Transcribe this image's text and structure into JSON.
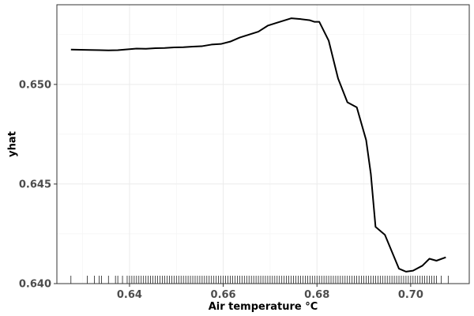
{
  "chart_data": {
    "type": "line",
    "title": "",
    "xlabel": "Air temperature °C",
    "ylabel": "yhat",
    "xlim": [
      0.6245,
      0.7125
    ],
    "ylim": [
      0.64,
      0.654
    ],
    "x_ticks": [
      0.64,
      0.66,
      0.68,
      0.7
    ],
    "x_tick_labels": [
      "0.64",
      "0.66",
      "0.68",
      "0.70"
    ],
    "y_ticks": [
      0.64,
      0.645,
      0.65
    ],
    "y_tick_labels": [
      "0.640",
      "0.645",
      "0.650"
    ],
    "grid": true,
    "legend": "none",
    "series": [
      {
        "x": [
          0.6275,
          0.6315,
          0.6355,
          0.6375,
          0.6415,
          0.6435,
          0.6455,
          0.6475,
          0.6495,
          0.6515,
          0.6535,
          0.6555,
          0.6575,
          0.6595,
          0.6615,
          0.6635,
          0.6655,
          0.6675,
          0.6695,
          0.6715,
          0.6745,
          0.6765,
          0.6785,
          0.6795,
          0.6805,
          0.6825,
          0.6845,
          0.6865,
          0.6885,
          0.6905,
          0.6915,
          0.6925,
          0.6945,
          0.6975,
          0.699,
          0.7005,
          0.7025,
          0.704,
          0.7055,
          0.7075
        ],
        "y": [
          0.65175,
          0.65173,
          0.65171,
          0.65172,
          0.6518,
          0.65179,
          0.65182,
          0.65183,
          0.65186,
          0.65187,
          0.6519,
          0.65192,
          0.652,
          0.65203,
          0.65215,
          0.65235,
          0.6525,
          0.65265,
          0.65295,
          0.6531,
          0.65332,
          0.65328,
          0.65322,
          0.65314,
          0.65314,
          0.6522,
          0.6503,
          0.6491,
          0.64885,
          0.6472,
          0.6455,
          0.64285,
          0.64245,
          0.64075,
          0.6406,
          0.64065,
          0.6409,
          0.64125,
          0.64115,
          0.64132
        ]
      }
    ],
    "rug_x": [
      0.6275,
      0.631,
      0.6325,
      0.6335,
      0.634,
      0.6355,
      0.637,
      0.6375,
      0.6385,
      0.6395,
      0.64,
      0.6405,
      0.641,
      0.6415,
      0.642,
      0.6425,
      0.643,
      0.6435,
      0.644,
      0.6445,
      0.645,
      0.6455,
      0.646,
      0.6465,
      0.647,
      0.6475,
      0.648,
      0.6485,
      0.649,
      0.6495,
      0.65,
      0.6505,
      0.651,
      0.6515,
      0.652,
      0.6525,
      0.653,
      0.6535,
      0.654,
      0.6545,
      0.655,
      0.6555,
      0.656,
      0.6565,
      0.657,
      0.6575,
      0.658,
      0.6585,
      0.659,
      0.6595,
      0.66,
      0.6605,
      0.661,
      0.6615,
      0.662,
      0.6625,
      0.663,
      0.6635,
      0.664,
      0.6645,
      0.665,
      0.6655,
      0.666,
      0.6665,
      0.667,
      0.6675,
      0.668,
      0.6685,
      0.669,
      0.6695,
      0.67,
      0.6705,
      0.671,
      0.6715,
      0.672,
      0.6725,
      0.673,
      0.6735,
      0.674,
      0.6745,
      0.675,
      0.6755,
      0.676,
      0.6765,
      0.677,
      0.6775,
      0.678,
      0.6785,
      0.679,
      0.6795,
      0.68,
      0.6805,
      0.681,
      0.6815,
      0.682,
      0.6825,
      0.683,
      0.6835,
      0.684,
      0.6845,
      0.685,
      0.6855,
      0.686,
      0.6865,
      0.687,
      0.6875,
      0.688,
      0.6885,
      0.689,
      0.6895,
      0.69,
      0.6905,
      0.691,
      0.6915,
      0.692,
      0.6925,
      0.693,
      0.6935,
      0.694,
      0.6945,
      0.695,
      0.6955,
      0.696,
      0.6965,
      0.697,
      0.6975,
      0.698,
      0.6985,
      0.699,
      0.6995,
      0.7,
      0.7005,
      0.701,
      0.7015,
      0.702,
      0.7025,
      0.703,
      0.7035,
      0.704,
      0.7045,
      0.705,
      0.7055,
      0.7065,
      0.708
    ]
  }
}
